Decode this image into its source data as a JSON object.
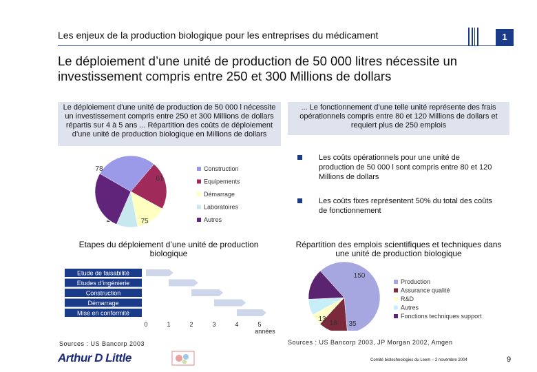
{
  "header": {
    "title": "Les enjeux de la production biologique pour les entreprises du médicament",
    "section_number": "1"
  },
  "headline": "Le déploiement d’une unité de production de 50 000 litres nécessite un investissement compris entre 250 et 300 Millions de dollars",
  "left_panel": {
    "heading": "Le déploiement d’une unité de production de 50 000 l nécessite un investissement compris entre 250 et 300 Millions de dollars répartis sur 4 à 5 ans ... Répartition des coûts de déploiement d’une unité de production biologique en Millions de dollars"
  },
  "right_panel": {
    "heading": "... Le fonctionnement d’une telle unité représente des frais opérationnels compris entre 80 et 120 Millions de dollars et requiert plus de 250 emplois",
    "bullets": [
      "Les coûts opérationnels pour une unité de production de 50 000 l sont compris entre 80 et 120 Millions de dollars",
      "Les coûts fixes représentent 50% du total des coûts de fonctionnement"
    ]
  },
  "gantt": {
    "title": "Etapes du déploiement d’une unité de production biologique",
    "axis_label": "années"
  },
  "employment": {
    "title": "Répartition des emplois scientifiques et techniques dans une unité de production biologique"
  },
  "sources": {
    "left": "Sources : US Bancorp 2003",
    "right": "Sources : US Bancorp 2003, JP Morgan 2002, Amgen"
  },
  "footer": {
    "logo": "Arthur D Little",
    "note": "Comité biotechnologies du Leem – 2 novembre 2004",
    "page": "9"
  },
  "chart_data": [
    {
      "type": "pie",
      "title": "",
      "categories": [
        "Construction",
        "Equipements",
        "Démarrage",
        "Laboratoires",
        "Autres"
      ],
      "values": [
        78,
        61,
        39,
        27,
        75
      ],
      "colors": [
        "#9a9ae8",
        "#a02a5a",
        "#ffffc0",
        "#c8e8f0",
        "#60247a"
      ]
    },
    {
      "type": "bar",
      "subtype": "gantt",
      "categories": [
        "Etude de faisabilité",
        "Etudes d’ingénierie",
        "Construction",
        "Démarrage",
        "Mise en conformité"
      ],
      "series": [
        {
          "values": [
            [
              0,
              1.2
            ],
            [
              1,
              2.3
            ],
            [
              2,
              3.4
            ],
            [
              3,
              4.4
            ],
            [
              4,
              5.3
            ]
          ]
        }
      ],
      "x_ticks": [
        "0",
        "1",
        "2",
        "3",
        "4",
        "5"
      ],
      "xlabel": "années",
      "xlim": [
        0,
        5.5
      ]
    },
    {
      "type": "pie",
      "title": "",
      "categories": [
        "Production",
        "Assurance qualité",
        "R&D",
        "Autres",
        "Fonctions techniques support"
      ],
      "values": [
        150,
        33,
        13,
        18,
        35
      ],
      "colors": [
        "#a6a6e0",
        "#7a2a3a",
        "#ffffc8",
        "#c8eef8",
        "#5a2470"
      ]
    }
  ]
}
